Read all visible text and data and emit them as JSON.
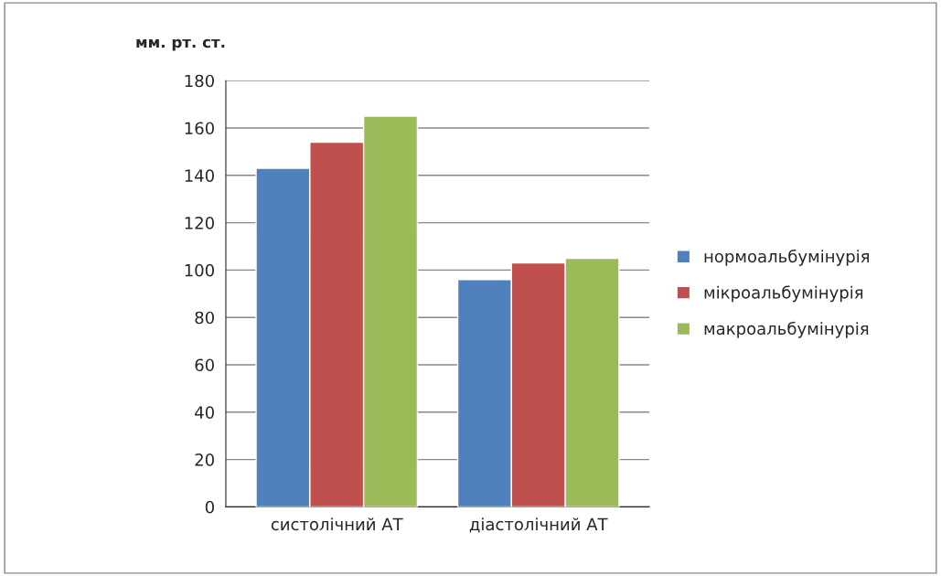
{
  "chart_data": {
    "type": "bar",
    "ylabel": "мм. рт. ст.",
    "categories": [
      "систолічний АТ",
      "діастолічний АТ"
    ],
    "series": [
      {
        "name": "нормоальбумінурія",
        "color": "#4f81bd",
        "values": [
          143,
          96
        ]
      },
      {
        "name": "мікроальбумінурія",
        "color": "#c0504d",
        "values": [
          154,
          103
        ]
      },
      {
        "name": "макроальбумінурія",
        "color": "#9bbb59",
        "values": [
          165,
          105
        ]
      }
    ],
    "ylim": [
      0,
      180
    ],
    "yticks": [
      0,
      20,
      40,
      60,
      80,
      100,
      120,
      140,
      160,
      180
    ],
    "grid": "y",
    "legend": "right"
  }
}
